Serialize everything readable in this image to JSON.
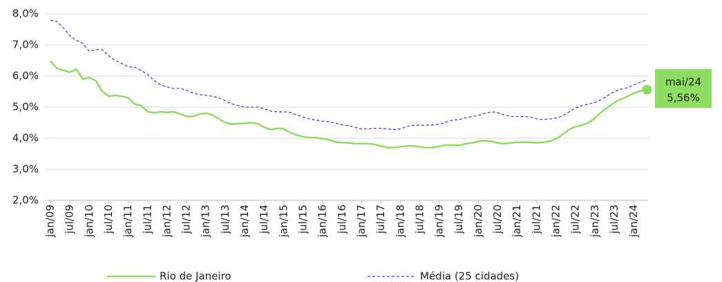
{
  "chart_data": {
    "type": "line",
    "categories": [
      "jan/09",
      null,
      null,
      "jul/09",
      null,
      null,
      "jan/10",
      null,
      null,
      "jul/10",
      null,
      null,
      "jan/11",
      null,
      null,
      "jul/11",
      null,
      null,
      "jan/12",
      null,
      null,
      "jul/12",
      null,
      null,
      "jan/13",
      null,
      null,
      "jul/13",
      null,
      null,
      "jan/14",
      null,
      null,
      "jul/14",
      null,
      null,
      "jan/15",
      null,
      null,
      "jul/15",
      null,
      null,
      "jan/16",
      null,
      null,
      "jul/16",
      null,
      null,
      "jan/17",
      null,
      null,
      "jul/17",
      null,
      null,
      "jan/18",
      null,
      null,
      "jul/18",
      null,
      null,
      "jan/19",
      null,
      null,
      "jul/19",
      null,
      null,
      "jan/20",
      null,
      null,
      "jul/20",
      null,
      null,
      "jan/21",
      null,
      null,
      "jul/21",
      null,
      null,
      "jan/22",
      null,
      null,
      "jul/22",
      null,
      null,
      "jan/23",
      null,
      null,
      "jul/23",
      null,
      null,
      "jan/24",
      null,
      null
    ],
    "series": [
      {
        "name": "Rio de Janeiro",
        "color": "#8fdc62",
        "dash": false,
        "values": [
          6.48,
          6.25,
          6.18,
          6.12,
          6.22,
          5.9,
          5.95,
          5.85,
          5.5,
          5.35,
          5.38,
          5.35,
          5.3,
          5.1,
          5.05,
          4.85,
          4.82,
          4.85,
          4.83,
          4.85,
          4.78,
          4.7,
          4.7,
          4.78,
          4.8,
          4.75,
          4.62,
          4.5,
          4.45,
          4.47,
          4.48,
          4.5,
          4.47,
          4.35,
          4.28,
          4.32,
          4.3,
          4.18,
          4.1,
          4.05,
          4.02,
          4.02,
          3.98,
          3.95,
          3.88,
          3.86,
          3.85,
          3.83,
          3.83,
          3.83,
          3.8,
          3.75,
          3.7,
          3.7,
          3.73,
          3.75,
          3.75,
          3.72,
          3.7,
          3.7,
          3.74,
          3.78,
          3.78,
          3.77,
          3.82,
          3.85,
          3.9,
          3.92,
          3.9,
          3.85,
          3.83,
          3.85,
          3.87,
          3.87,
          3.87,
          3.85,
          3.87,
          3.9,
          3.98,
          4.12,
          4.28,
          4.37,
          4.42,
          4.5,
          4.65,
          4.85,
          5.0,
          5.15,
          5.25,
          5.35,
          5.45,
          5.52,
          5.56
        ]
      },
      {
        "name": "Média (25 cidades)",
        "color": "#6a2fc9",
        "dash": true,
        "values": [
          7.8,
          7.75,
          7.55,
          7.3,
          7.15,
          7.05,
          6.8,
          6.85,
          6.85,
          6.65,
          6.5,
          6.4,
          6.3,
          6.28,
          6.18,
          6.05,
          5.85,
          5.72,
          5.65,
          5.6,
          5.6,
          5.55,
          5.45,
          5.4,
          5.38,
          5.35,
          5.3,
          5.2,
          5.1,
          5.05,
          5.0,
          5.0,
          5.0,
          4.95,
          4.87,
          4.85,
          4.85,
          4.83,
          4.75,
          4.68,
          4.62,
          4.58,
          4.55,
          4.53,
          4.48,
          4.43,
          4.4,
          4.35,
          4.3,
          4.3,
          4.32,
          4.32,
          4.3,
          4.28,
          4.3,
          4.38,
          4.42,
          4.42,
          4.42,
          4.43,
          4.45,
          4.52,
          4.58,
          4.6,
          4.65,
          4.7,
          4.73,
          4.8,
          4.85,
          4.82,
          4.75,
          4.7,
          4.7,
          4.7,
          4.68,
          4.62,
          4.6,
          4.62,
          4.65,
          4.72,
          4.85,
          4.98,
          5.05,
          5.1,
          5.15,
          5.25,
          5.38,
          5.5,
          5.58,
          5.62,
          5.72,
          5.8,
          5.88
        ]
      }
    ],
    "annotation": {
      "text": "mai/24",
      "value_label": "5,56%"
    },
    "ylim": [
      2,
      8
    ],
    "yticks": [
      {
        "value": 2,
        "label": "2,0%"
      },
      {
        "value": 3,
        "label": "3,0%"
      },
      {
        "value": 4,
        "label": "4,0%"
      },
      {
        "value": 5,
        "label": "5,0%"
      },
      {
        "value": 6,
        "label": "6,0%"
      },
      {
        "value": 7,
        "label": "7,0%"
      },
      {
        "value": 8,
        "label": "8,0%"
      }
    ],
    "grid": true
  }
}
